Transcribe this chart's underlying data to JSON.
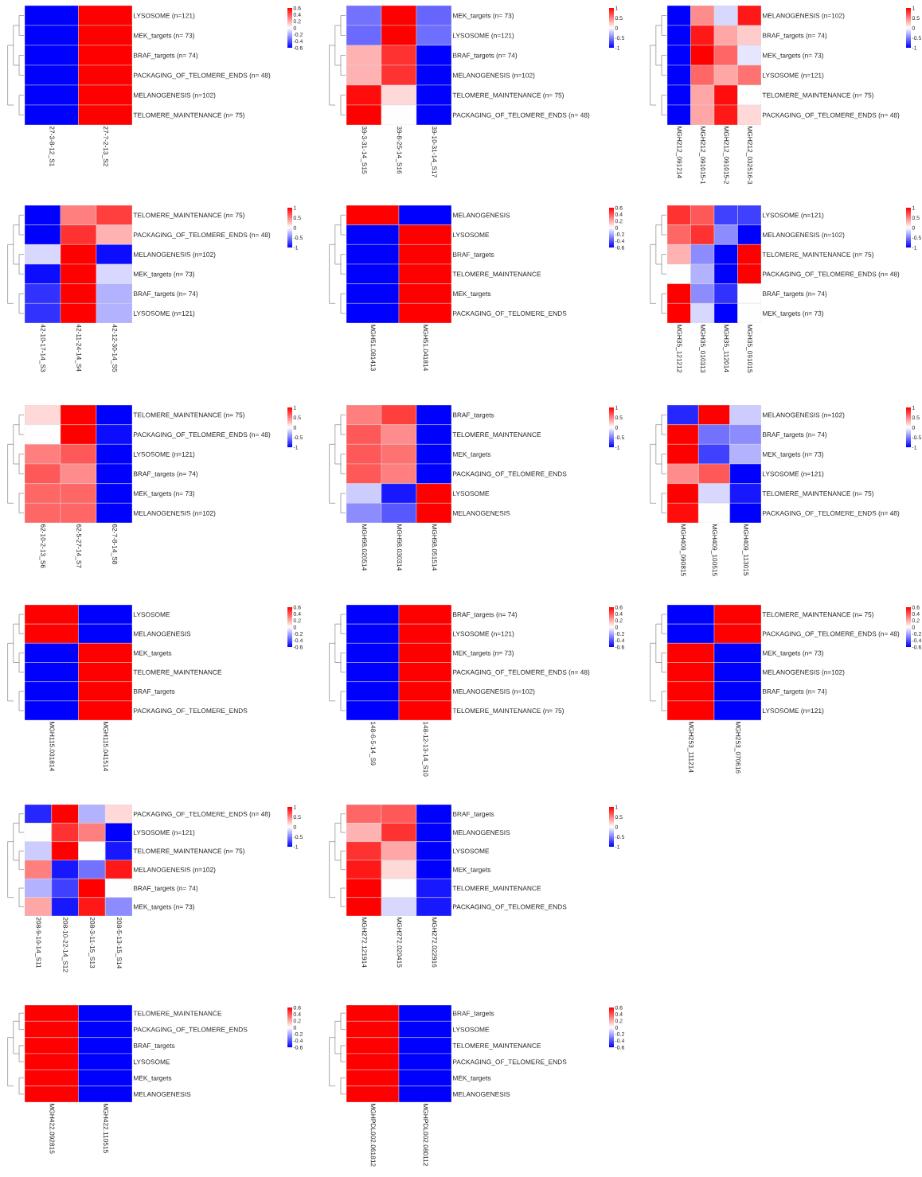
{
  "chart_data": [
    {
      "type": "heatmap",
      "categories": [
        "27-3-8-12_S1",
        "27-7-2-13_S2"
      ],
      "y_categories": [
        "LYSOSOME (n=121)",
        "MEK_targets (n= 73)",
        "BRAF_targets (n= 74)",
        "PACKAGING_OF_TELOMERE_ENDS (n= 48)",
        "MELANOGENESIS (n=102)",
        "TELOMERE_MAINTENANCE (n= 75)"
      ],
      "cells": [
        [
          -0.6,
          0.6
        ],
        [
          -0.6,
          0.6
        ],
        [
          -0.6,
          0.6
        ],
        [
          -0.6,
          0.6
        ],
        [
          -0.6,
          0.6
        ],
        [
          -0.6,
          0.6
        ]
      ],
      "clim": [
        -0.6,
        0.6
      ],
      "cticks": [
        0.6,
        0.4,
        0.2,
        0,
        -0.2,
        -0.4,
        -0.6
      ]
    },
    {
      "type": "heatmap",
      "categories": [
        "39-3-31-14_S15",
        "39-8-25-14_S16",
        "39-10-31-14_S17"
      ],
      "y_categories": [
        "MEK_targets (n= 73)",
        "LYSOSOME (n=121)",
        "BRAF_targets (n= 74)",
        "MELANOGENESIS (n=102)",
        "TELOMERE_MAINTENANCE (n= 75)",
        "PACKAGING_OF_TELOMERE_ENDS (n= 48)"
      ],
      "cells": [
        [
          -0.55,
          1,
          -0.6
        ],
        [
          -0.58,
          1,
          -0.57
        ],
        [
          0.3,
          0.8,
          -1
        ],
        [
          0.3,
          0.8,
          -1
        ],
        [
          0.95,
          0.15,
          -1
        ],
        [
          1,
          0,
          -1
        ]
      ],
      "clim": [
        -1,
        1
      ],
      "cticks": [
        1,
        0.5,
        0,
        -0.5,
        -1
      ]
    },
    {
      "type": "heatmap",
      "categories": [
        "MGH212_091214",
        "MGH212_091015-1",
        "MGH212_091015-2",
        "MGH212_032516-3"
      ],
      "y_categories": [
        "MELANOGENESIS (n=102)",
        "BRAF_targets (n= 74)",
        "MEK_targets (n= 73)",
        "LYSOSOME (n=121)",
        "TELOMERE_MAINTENANCE (n= 75)",
        "PACKAGING_OF_TELOMERE_ENDS (n= 48)"
      ],
      "cells": [
        [
          -1,
          0.45,
          -0.15,
          0.9
        ],
        [
          -1,
          0.9,
          0.35,
          0.2
        ],
        [
          -1,
          1,
          0.6,
          -0.1
        ],
        [
          -1,
          0.6,
          0.35,
          0.55
        ],
        [
          -1,
          0.35,
          0.95,
          0
        ],
        [
          -1,
          0.35,
          0.9,
          0.15
        ]
      ],
      "clim": [
        -1,
        1
      ],
      "cticks": [
        1,
        0.5,
        0,
        -0.5,
        -1
      ]
    },
    {
      "type": "heatmap",
      "categories": [
        "42-10-17-14_S3",
        "42-11-24-14_S4",
        "42-12-30-14_S5"
      ],
      "y_categories": [
        "TELOMERE_MAINTENANCE (n= 75)",
        "PACKAGING_OF_TELOMERE_ENDS (n= 48)",
        "MELANOGENESIS (n=102)",
        "MEK_targets (n= 73)",
        "BRAF_targets (n= 74)",
        "LYSOSOME (n=121)"
      ],
      "cells": [
        [
          -1,
          0.5,
          0.75
        ],
        [
          -1,
          0.8,
          0.3
        ],
        [
          -0.15,
          1,
          -0.95
        ],
        [
          -0.95,
          1,
          -0.15
        ],
        [
          -0.8,
          1,
          -0.3
        ],
        [
          -0.8,
          1,
          -0.3
        ]
      ],
      "clim": [
        -1,
        1
      ],
      "cticks": [
        1,
        0.5,
        0,
        -0.5,
        -1
      ]
    },
    {
      "type": "heatmap",
      "categories": [
        "MGH51.081413",
        "MGH51.041814"
      ],
      "y_categories": [
        "MELANOGENESIS",
        "LYSOSOME",
        "BRAF_targets",
        "TELOMERE_MAINTENANCE",
        "MEK_targets",
        "PACKAGING_OF_TELOMERE_ENDS"
      ],
      "cells": [
        [
          0.6,
          -0.6
        ],
        [
          -0.6,
          0.6
        ],
        [
          -0.6,
          0.6
        ],
        [
          -0.6,
          0.6
        ],
        [
          -0.6,
          0.6
        ],
        [
          -0.6,
          0.6
        ]
      ],
      "clim": [
        -0.6,
        0.6
      ],
      "cticks": [
        0.6,
        0.4,
        0.2,
        0,
        -0.2,
        -0.4,
        -0.6
      ]
    },
    {
      "type": "heatmap",
      "categories": [
        "MGH35_121212",
        "MGH35_010313",
        "MGH35_112014",
        "MGH35_091015"
      ],
      "y_categories": [
        "LYSOSOME (n=121)",
        "MELANOGENESIS (n=102)",
        "TELOMERE_MAINTENANCE (n= 75)",
        "PACKAGING_OF_TELOMERE_ENDS (n= 48)",
        "BRAF_targets (n= 74)",
        "MEK_targets (n= 73)"
      ],
      "cells": [
        [
          0.8,
          0.65,
          -0.75,
          -0.75
        ],
        [
          0.6,
          0.8,
          -0.45,
          -1
        ],
        [
          0.3,
          -0.45,
          -1,
          1
        ],
        [
          0,
          -0.3,
          -1,
          1
        ],
        [
          1,
          -0.45,
          -0.8,
          0
        ],
        [
          1,
          -0.15,
          -1,
          0
        ]
      ],
      "clim": [
        -1,
        1
      ],
      "cticks": [
        1,
        0.5,
        0,
        -0.5,
        -1
      ]
    },
    {
      "type": "heatmap",
      "categories": [
        "62-10-2-13_S6",
        "62-5-27-14_S7",
        "62-7-8-14_S8"
      ],
      "y_categories": [
        "TELOMERE_MAINTENANCE (n= 75)",
        "PACKAGING_OF_TELOMERE_ENDS (n= 48)",
        "LYSOSOME (n=121)",
        "BRAF_targets (n= 74)",
        "MEK_targets (n= 73)",
        "MELANOGENESIS (n=102)"
      ],
      "cells": [
        [
          0.15,
          1,
          -1
        ],
        [
          0,
          1,
          -0.95
        ],
        [
          0.5,
          0.65,
          -1
        ],
        [
          0.65,
          0.45,
          -1
        ],
        [
          0.6,
          0.6,
          -1
        ],
        [
          0.6,
          0.6,
          -1
        ]
      ],
      "clim": [
        -1,
        1
      ],
      "cticks": [
        1,
        0.5,
        0,
        -0.5,
        -1
      ]
    },
    {
      "type": "heatmap",
      "categories": [
        "MGH98.020514",
        "MGH98.030314",
        "MGH98.051514"
      ],
      "y_categories": [
        "BRAF_targets",
        "TELOMERE_MAINTENANCE",
        "MEK_targets",
        "PACKAGING_OF_TELOMERE_ENDS",
        "LYSOSOME",
        "MELANOGENESIS"
      ],
      "cells": [
        [
          0.5,
          0.75,
          -1
        ],
        [
          0.65,
          0.45,
          -1
        ],
        [
          0.65,
          0.55,
          -1
        ],
        [
          0.65,
          0.5,
          -1
        ],
        [
          -0.2,
          -0.9,
          1
        ],
        [
          -0.45,
          -0.65,
          1
        ]
      ],
      "clim": [
        -1,
        1
      ],
      "cticks": [
        1,
        0.5,
        0,
        -0.5,
        -1
      ]
    },
    {
      "type": "heatmap",
      "categories": [
        "MGH409_090815",
        "MGH409_100515",
        "MGH409_113015"
      ],
      "y_categories": [
        "MELANOGENESIS (n=102)",
        "BRAF_targets (n= 74)",
        "MEK_targets (n= 73)",
        "LYSOSOME (n=121)",
        "TELOMERE_MAINTENANCE (n= 75)",
        "PACKAGING_OF_TELOMERE_ENDS (n= 48)"
      ],
      "cells": [
        [
          -0.85,
          1,
          -0.2
        ],
        [
          1,
          -0.55,
          -0.45
        ],
        [
          1,
          -0.75,
          -0.3
        ],
        [
          0.45,
          0.65,
          -1
        ],
        [
          1,
          -0.15,
          -0.9
        ],
        [
          0.95,
          0,
          -1
        ]
      ],
      "clim": [
        -1,
        1
      ],
      "cticks": [
        1,
        0.5,
        0,
        -0.5,
        -1
      ]
    },
    {
      "type": "heatmap",
      "categories": [
        "MGH115.031814",
        "MGH115.041514"
      ],
      "y_categories": [
        "LYSOSOME",
        "MELANOGENESIS",
        "MEK_targets",
        "TELOMERE_MAINTENANCE",
        "BRAF_targets",
        "PACKAGING_OF_TELOMERE_ENDS"
      ],
      "cells": [
        [
          0.6,
          -0.6
        ],
        [
          0.6,
          -0.6
        ],
        [
          -0.6,
          0.6
        ],
        [
          -0.6,
          0.6
        ],
        [
          -0.6,
          0.6
        ],
        [
          -0.6,
          0.6
        ]
      ],
      "clim": [
        -0.6,
        0.6
      ],
      "cticks": [
        0.6,
        0.4,
        0.2,
        0,
        -0.2,
        -0.4,
        -0.6
      ]
    },
    {
      "type": "heatmap",
      "categories": [
        "148-6-5-14_S9",
        "148-12-13-14_S10"
      ],
      "y_categories": [
        "BRAF_targets (n= 74)",
        "LYSOSOME (n=121)",
        "MEK_targets (n= 73)",
        "PACKAGING_OF_TELOMERE_ENDS (n= 48)",
        "MELANOGENESIS (n=102)",
        "TELOMERE_MAINTENANCE (n= 75)"
      ],
      "cells": [
        [
          -0.6,
          0.6
        ],
        [
          -0.6,
          0.6
        ],
        [
          -0.6,
          0.6
        ],
        [
          -0.6,
          0.6
        ],
        [
          -0.6,
          0.6
        ],
        [
          -0.6,
          0.6
        ]
      ],
      "clim": [
        -0.6,
        0.6
      ],
      "cticks": [
        0.6,
        0.4,
        0.2,
        0,
        -0.2,
        -0.4,
        -0.6
      ]
    },
    {
      "type": "heatmap",
      "categories": [
        "MGH253_111214",
        "MGH253_070616"
      ],
      "y_categories": [
        "TELOMERE_MAINTENANCE (n= 75)",
        "PACKAGING_OF_TELOMERE_ENDS (n= 48)",
        "MEK_targets (n= 73)",
        "MELANOGENESIS (n=102)",
        "BRAF_targets (n= 74)",
        "LYSOSOME (n=121)"
      ],
      "cells": [
        [
          -0.6,
          0.6
        ],
        [
          -0.6,
          0.6
        ],
        [
          0.6,
          -0.6
        ],
        [
          0.6,
          -0.6
        ],
        [
          0.6,
          -0.6
        ],
        [
          0.6,
          -0.6
        ]
      ],
      "clim": [
        -0.6,
        0.6
      ],
      "cticks": [
        0.6,
        0.4,
        0.2,
        0,
        -0.2,
        -0.4,
        -0.6
      ]
    },
    {
      "type": "heatmap",
      "categories": [
        "208-9-10-14_S11",
        "208-10-22-14_S12",
        "208-3-11-15_S13",
        "208-5-13-15_S14"
      ],
      "y_categories": [
        "PACKAGING_OF_TELOMERE_ENDS (n= 48)",
        "LYSOSOME (n=121)",
        "TELOMERE_MAINTENANCE (n= 75)",
        "MELANOGENESIS (n=102)",
        "BRAF_targets (n= 74)",
        "MEK_targets (n= 73)"
      ],
      "cells": [
        [
          -0.85,
          1,
          -0.3,
          0.15
        ],
        [
          0,
          0.8,
          0.5,
          -1
        ],
        [
          -0.2,
          1,
          0,
          -0.9
        ],
        [
          0.5,
          -0.9,
          -0.55,
          0.9
        ],
        [
          -0.3,
          -0.75,
          1,
          0
        ],
        [
          0.35,
          -0.9,
          0.9,
          -0.45
        ]
      ],
      "clim": [
        -1,
        1
      ],
      "cticks": [
        1,
        0.5,
        0,
        -0.5,
        -1
      ]
    },
    {
      "type": "heatmap",
      "categories": [
        "MGH272.121914",
        "MGH272.020415",
        "MGH272.022916"
      ],
      "y_categories": [
        "BRAF_targets",
        "MELANOGENESIS",
        "LYSOSOME",
        "MEK_targets",
        "TELOMERE_MAINTENANCE",
        "PACKAGING_OF_TELOMERE_ENDS"
      ],
      "cells": [
        [
          0.6,
          0.65,
          -1
        ],
        [
          0.3,
          0.8,
          -1
        ],
        [
          0.8,
          0.35,
          -1
        ],
        [
          0.9,
          0.15,
          -1
        ],
        [
          1,
          0,
          -0.9
        ],
        [
          1,
          -0.15,
          -0.9
        ]
      ],
      "clim": [
        -1,
        1
      ],
      "cticks": [
        1,
        0.5,
        0,
        -0.5,
        -1
      ]
    },
    {
      "type": "heatmap",
      "categories": [
        "MGH422.092815",
        "MGH422.110515"
      ],
      "y_categories": [
        "TELOMERE_MAINTENANCE",
        "PACKAGING_OF_TELOMERE_ENDS",
        "BRAF_targets",
        "LYSOSOME",
        "MEK_targets",
        "MELANOGENESIS"
      ],
      "cells": [
        [
          0.6,
          -0.6
        ],
        [
          0.6,
          -0.6
        ],
        [
          0.6,
          -0.6
        ],
        [
          0.6,
          -0.6
        ],
        [
          0.6,
          -0.6
        ],
        [
          0.6,
          -0.6
        ]
      ],
      "clim": [
        -0.6,
        0.6
      ],
      "cticks": [
        0.6,
        0.4,
        0.2,
        0,
        -0.2,
        -0.4,
        -0.6
      ]
    },
    {
      "type": "heatmap",
      "categories": [
        "MGHPDL002.061812",
        "MGHPDL002.080112"
      ],
      "y_categories": [
        "BRAF_targets",
        "LYSOSOME",
        "TELOMERE_MAINTENANCE",
        "PACKAGING_OF_TELOMERE_ENDS",
        "MEK_targets",
        "MELANOGENESIS"
      ],
      "cells": [
        [
          0.6,
          -0.6
        ],
        [
          0.6,
          -0.6
        ],
        [
          0.6,
          -0.6
        ],
        [
          0.6,
          -0.6
        ],
        [
          0.6,
          -0.6
        ],
        [
          0.6,
          -0.6
        ]
      ],
      "clim": [
        -0.6,
        0.6
      ],
      "cticks": [
        0.6,
        0.4,
        0.2,
        0,
        -0.2,
        -0.4,
        -0.6
      ]
    }
  ]
}
